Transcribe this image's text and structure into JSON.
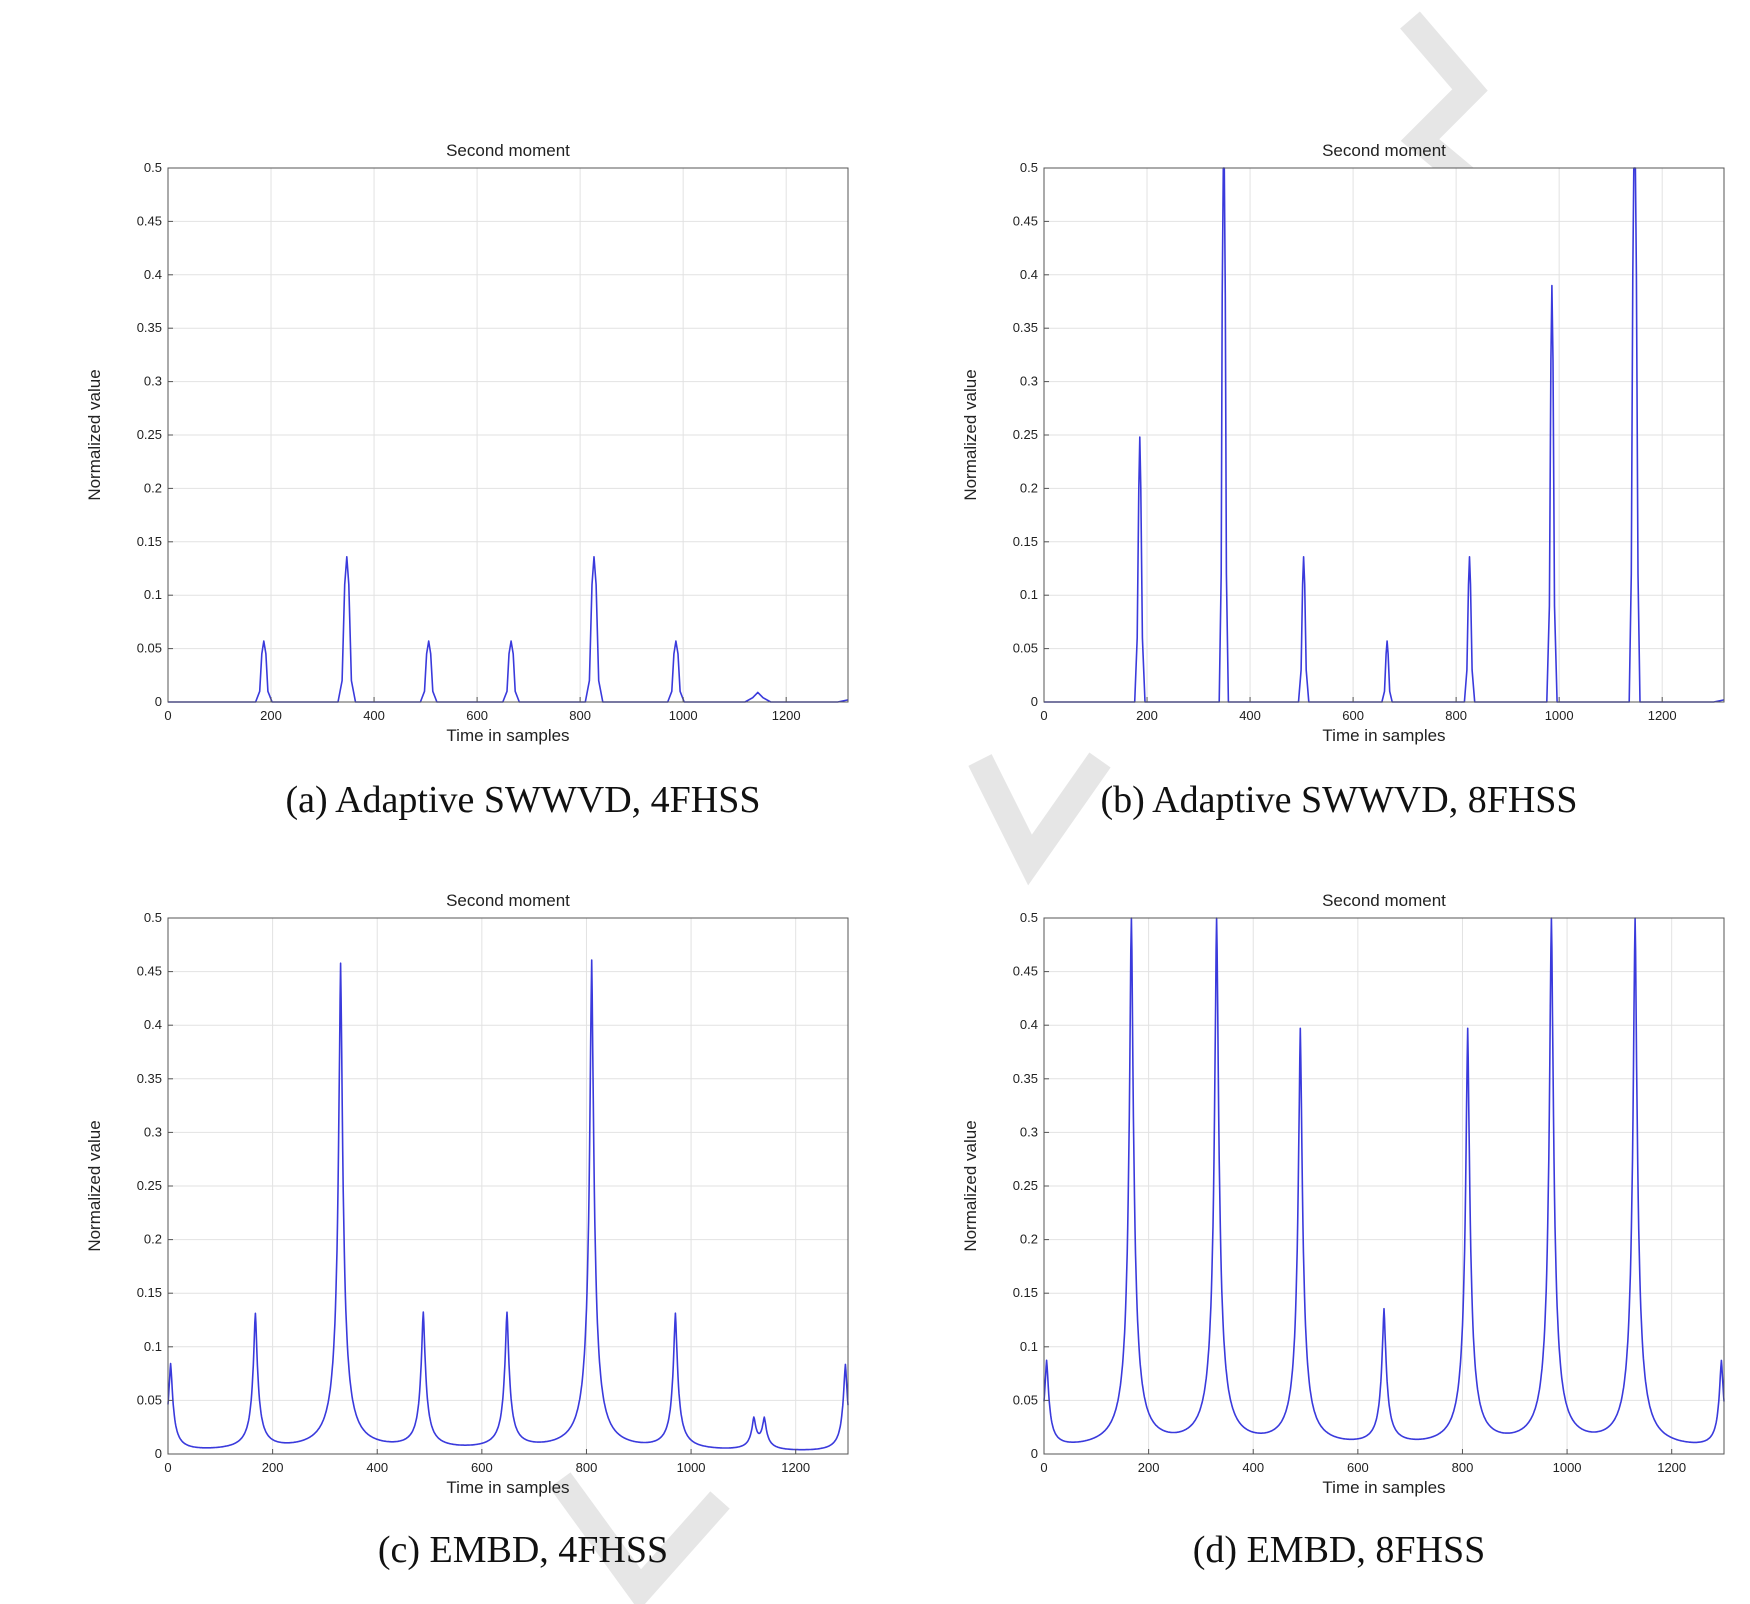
{
  "colors": {
    "line": "#3a3adc",
    "grid": "#e2e2e2",
    "axis": "#555555",
    "watermark": "#e6e6e6"
  },
  "chart_data": [
    {
      "type": "line",
      "title": "Second moment",
      "xlabel": "Time in samples",
      "ylabel": "Normalized value",
      "caption": "(a) Adaptive SWWVD, 4FHSS",
      "xlim": [
        0,
        1320
      ],
      "ylim": [
        0,
        0.5
      ],
      "xticks": [
        0,
        200,
        400,
        600,
        800,
        1000,
        1200
      ],
      "yticks": [
        0,
        0.05,
        0.1,
        0.15,
        0.2,
        0.25,
        0.3,
        0.35,
        0.4,
        0.45,
        0.5
      ],
      "grid": true,
      "series": [
        {
          "x": [
            0,
            170,
            178,
            182,
            186,
            190,
            194,
            202,
            330,
            338,
            343,
            347,
            351,
            356,
            364,
            490,
            498,
            502,
            506,
            510,
            514,
            522,
            650,
            658,
            662,
            666,
            670,
            674,
            682,
            810,
            818,
            823,
            827,
            831,
            836,
            844,
            970,
            978,
            982,
            986,
            990,
            994,
            1002,
            1120,
            1135,
            1145,
            1155,
            1170,
            1300,
            1320
          ],
          "y": [
            0,
            0,
            0.01,
            0.045,
            0.057,
            0.045,
            0.01,
            0,
            0,
            0.02,
            0.11,
            0.136,
            0.11,
            0.02,
            0,
            0,
            0.01,
            0.045,
            0.057,
            0.045,
            0.01,
            0,
            0,
            0.01,
            0.045,
            0.057,
            0.045,
            0.01,
            0,
            0,
            0.02,
            0.11,
            0.136,
            0.11,
            0.02,
            0,
            0,
            0.01,
            0.045,
            0.057,
            0.045,
            0.01,
            0,
            0,
            0.004,
            0.009,
            0.004,
            0,
            0,
            0.002
          ]
        }
      ]
    },
    {
      "type": "line",
      "title": "Second moment",
      "xlabel": "Time in samples",
      "ylabel": "Normalized value",
      "caption": "(b) Adaptive SWWVD, 8FHSS",
      "xlim": [
        0,
        1320
      ],
      "ylim": [
        0,
        0.5
      ],
      "xticks": [
        0,
        200,
        400,
        600,
        800,
        1000,
        1200
      ],
      "yticks": [
        0,
        0.05,
        0.1,
        0.15,
        0.2,
        0.25,
        0.3,
        0.35,
        0.4,
        0.45,
        0.5
      ],
      "grid": true,
      "series": [
        {
          "x": [
            0,
            176,
            181,
            184,
            186,
            188,
            191,
            196,
            340,
            344,
            346,
            348,
            350,
            352,
            354,
            358,
            494,
            499,
            502,
            504,
            506,
            509,
            514,
            656,
            661,
            664,
            666,
            668,
            671,
            676,
            816,
            821,
            824,
            826,
            828,
            831,
            836,
            976,
            981,
            984,
            986,
            988,
            991,
            996,
            1136,
            1140,
            1143,
            1145,
            1148,
            1150,
            1153,
            1157,
            1300,
            1320
          ],
          "y": [
            0,
            0,
            0.06,
            0.2,
            0.248,
            0.2,
            0.06,
            0,
            0,
            0.12,
            0.38,
            0.5,
            0.5,
            0.38,
            0.12,
            0,
            0,
            0.03,
            0.11,
            0.136,
            0.11,
            0.03,
            0,
            0,
            0.01,
            0.045,
            0.057,
            0.045,
            0.01,
            0,
            0,
            0.03,
            0.11,
            0.136,
            0.11,
            0.03,
            0,
            0,
            0.09,
            0.32,
            0.39,
            0.32,
            0.09,
            0,
            0,
            0.12,
            0.4,
            0.5,
            0.5,
            0.4,
            0.12,
            0,
            0,
            0.002
          ]
        }
      ]
    },
    {
      "type": "line",
      "title": "Second moment",
      "xlabel": "Time in samples",
      "ylabel": "Normalized value",
      "caption": "(c) EMBD, 4FHSS",
      "xlim": [
        0,
        1300
      ],
      "ylim": [
        0,
        0.5
      ],
      "xticks": [
        0,
        200,
        400,
        600,
        800,
        1000,
        1200
      ],
      "yticks": [
        0,
        0.05,
        0.1,
        0.15,
        0.2,
        0.25,
        0.3,
        0.35,
        0.4,
        0.45,
        0.5
      ],
      "grid": true,
      "peaks": [
        {
          "x": 5,
          "h": 0.082
        },
        {
          "x": 167,
          "h": 0.127
        },
        {
          "x": 330,
          "h": 0.455
        },
        {
          "x": 488,
          "h": 0.127
        },
        {
          "x": 648,
          "h": 0.127
        },
        {
          "x": 810,
          "h": 0.458
        },
        {
          "x": 970,
          "h": 0.127
        },
        {
          "x": 1120,
          "h": 0.028
        },
        {
          "x": 1140,
          "h": 0.028
        },
        {
          "x": 1295,
          "h": 0.082
        }
      ]
    },
    {
      "type": "line",
      "title": "Second moment",
      "xlabel": "Time in samples",
      "ylabel": "Normalized value",
      "caption": "(d) EMBD, 8FHSS",
      "xlim": [
        0,
        1300
      ],
      "ylim": [
        0,
        0.5
      ],
      "xticks": [
        0,
        200,
        400,
        600,
        800,
        1000,
        1200
      ],
      "yticks": [
        0,
        0.05,
        0.1,
        0.15,
        0.2,
        0.25,
        0.3,
        0.35,
        0.4,
        0.45,
        0.5
      ],
      "grid": true,
      "peaks": [
        {
          "x": 5,
          "h": 0.082
        },
        {
          "x": 167,
          "h": 0.5
        },
        {
          "x": 330,
          "h": 0.5
        },
        {
          "x": 490,
          "h": 0.39
        },
        {
          "x": 650,
          "h": 0.127
        },
        {
          "x": 810,
          "h": 0.39
        },
        {
          "x": 970,
          "h": 0.5
        },
        {
          "x": 1130,
          "h": 0.5
        },
        {
          "x": 1295,
          "h": 0.082
        }
      ]
    }
  ]
}
